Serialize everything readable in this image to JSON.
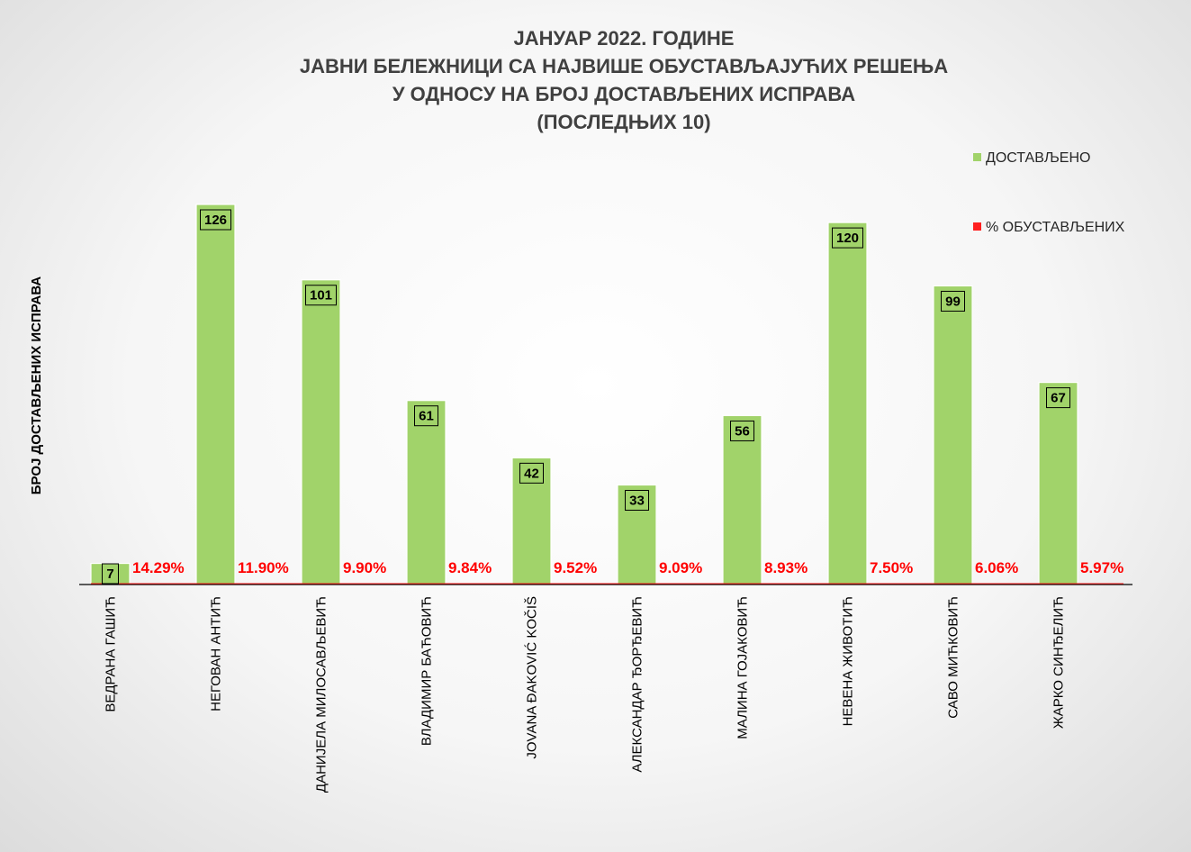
{
  "chart_data": {
    "type": "bar",
    "title_lines": [
      "ЈАНУАР 2022. ГОДИНЕ",
      "ЈАВНИ БЕЛЕЖНИЦИ СА НАЈВИШЕ ОБУСТАВЉАЈУЋИХ РЕШЕЊА",
      "У ОДНОСУ НА БРОЈ ДОСТАВЉЕНИХ ИСПРАВА",
      "(ПОСЛЕДЊИХ 10)"
    ],
    "ylabel": "БРОЈ ДОСТАВЉЕНИХ ИСПРАВА",
    "xlabel": "",
    "ylim": [
      0,
      140
    ],
    "grid": false,
    "legend_position": "top-right",
    "categories": [
      "ВЕДРАНА ГАШИЋ",
      "НЕГОВАН АНТИЋ",
      "ДАНИЈЕЛА МИЛОСАВЉЕВИЋ",
      "ВЛАДИМИР БАЋОВИЋ",
      "JOVANA ĐAKOVIĆ KOČIŠ",
      "АЛЕКСАНДАР ЂОРЂЕВИЋ",
      "МАЛИНА ГОЈАКОВИЋ",
      "НЕВЕНА ЖИВОТИЋ",
      "САВО МИЋКОВИЋ",
      "ЖАРКО СИНЂЕЛИЋ"
    ],
    "series": [
      {
        "name": "ДОСТАВЉЕНО",
        "color": "#a1d36a",
        "values": [
          7,
          126,
          101,
          61,
          42,
          33,
          56,
          120,
          99,
          67
        ]
      },
      {
        "name": "% ОБУСТАВЉЕНИХ",
        "color": "#ff2020",
        "values": [
          14.29,
          11.9,
          9.9,
          9.84,
          9.52,
          9.09,
          8.93,
          7.5,
          6.06,
          5.97
        ],
        "labels": [
          "14.29%",
          "11.90%",
          "9.90%",
          "9.84%",
          "9.52%",
          "9.09%",
          "8.93%",
          "7.50%",
          "6.06%",
          "5.97%"
        ]
      }
    ]
  }
}
